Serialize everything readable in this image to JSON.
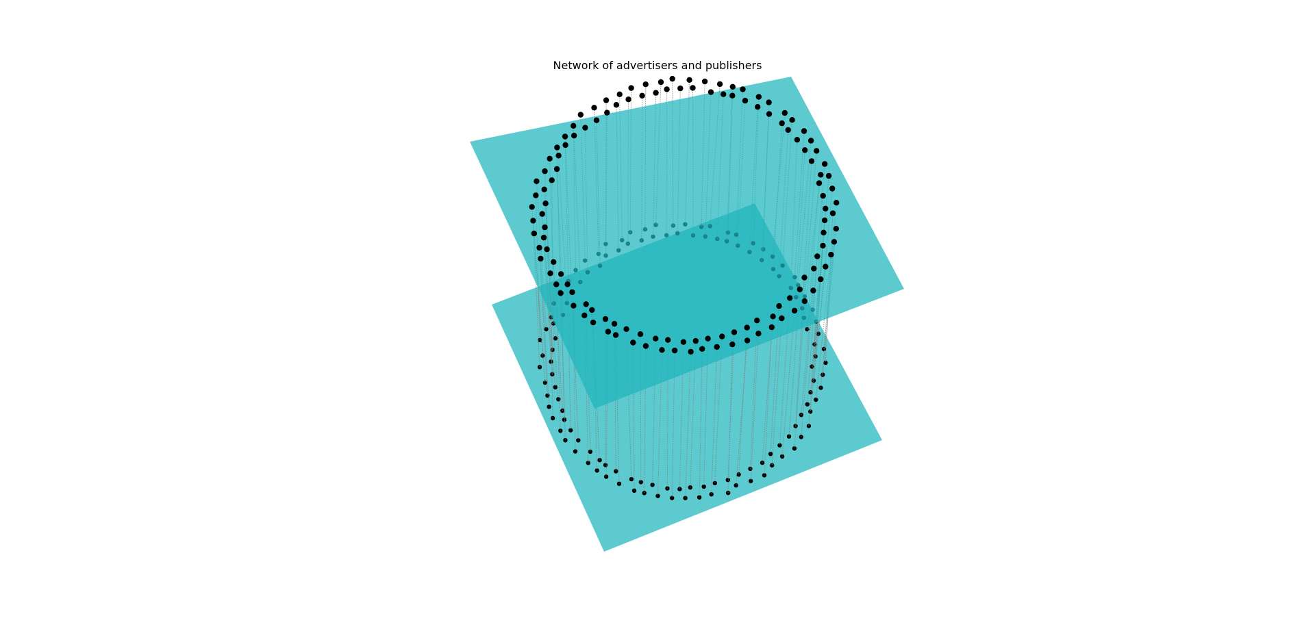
{
  "title": "Network of advertisers and publishers",
  "colors": {
    "plane": "#1fb5bd",
    "node": "#000000",
    "edge": "#808080",
    "background": "#ffffff"
  },
  "chart_data": {
    "type": "network-3d",
    "layers": [
      "lower-plane",
      "upper-plane"
    ],
    "layout": "circular-ring-per-layer",
    "edge_style": "dotted-vertical",
    "nodes_per_layer": 130
  }
}
